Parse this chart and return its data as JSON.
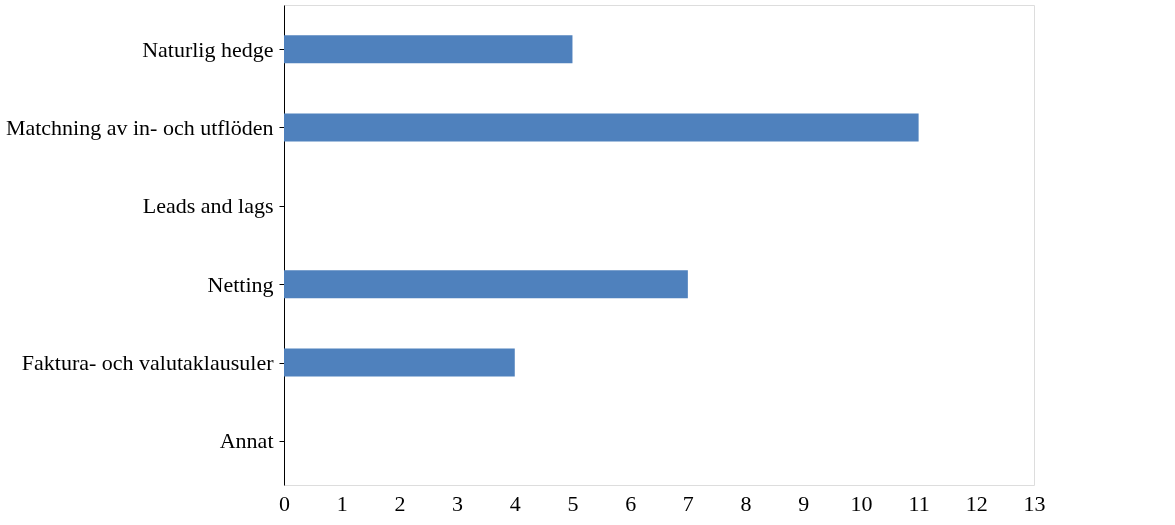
{
  "chart_data": {
    "type": "bar",
    "orientation": "horizontal",
    "categories": [
      "Naturlig hedge",
      "Matchning av in- och utflöden",
      "Leads and lags",
      "Netting",
      "Faktura- och valutaklausuler",
      "Annat"
    ],
    "values": [
      5,
      11,
      0,
      7,
      4,
      0
    ],
    "color": "#4f81bd",
    "xlim": [
      0,
      13
    ],
    "xticks": [
      0,
      1,
      2,
      3,
      4,
      5,
      6,
      7,
      8,
      9,
      10,
      11,
      12,
      13
    ],
    "grid": false
  }
}
